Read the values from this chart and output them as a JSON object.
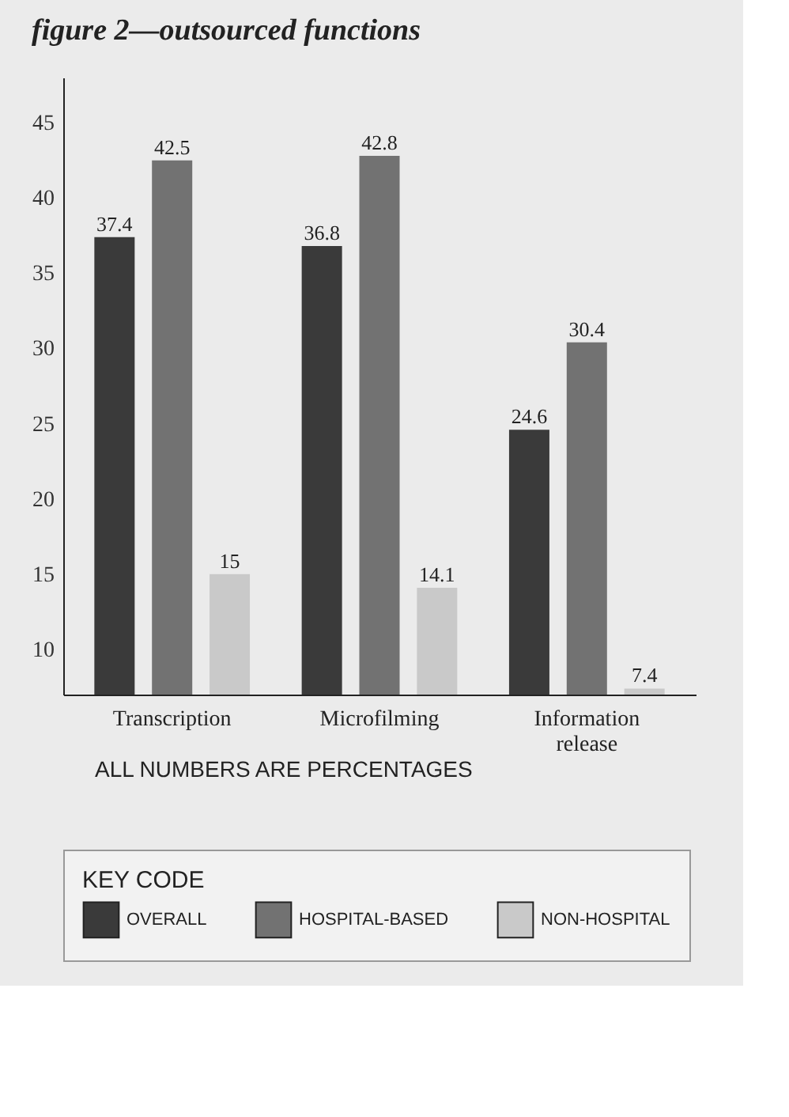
{
  "chart_data": {
    "type": "bar",
    "title": "figure 2—outsourced functions",
    "categories": [
      "Transcription",
      "Microfilming",
      "Information release"
    ],
    "series": [
      {
        "name": "OVERALL",
        "color": "#3a3a3a",
        "values": [
          37.4,
          36.8,
          24.6
        ]
      },
      {
        "name": "HOSPITAL-BASED",
        "color": "#727272",
        "values": [
          42.5,
          42.8,
          30.4
        ]
      },
      {
        "name": "NON-HOSPITAL",
        "color": "#c9c9c9",
        "values": [
          15,
          14.1,
          7.4
        ]
      }
    ],
    "ylim": [
      7,
      48
    ],
    "yticks": [
      10,
      15,
      20,
      25,
      30,
      35,
      40,
      45
    ],
    "grid": false,
    "data_labels": true,
    "legend": "bottom",
    "legend_title": "KEY CODE",
    "annotations": [
      "ALL NUMBERS ARE PERCENTAGES"
    ]
  }
}
